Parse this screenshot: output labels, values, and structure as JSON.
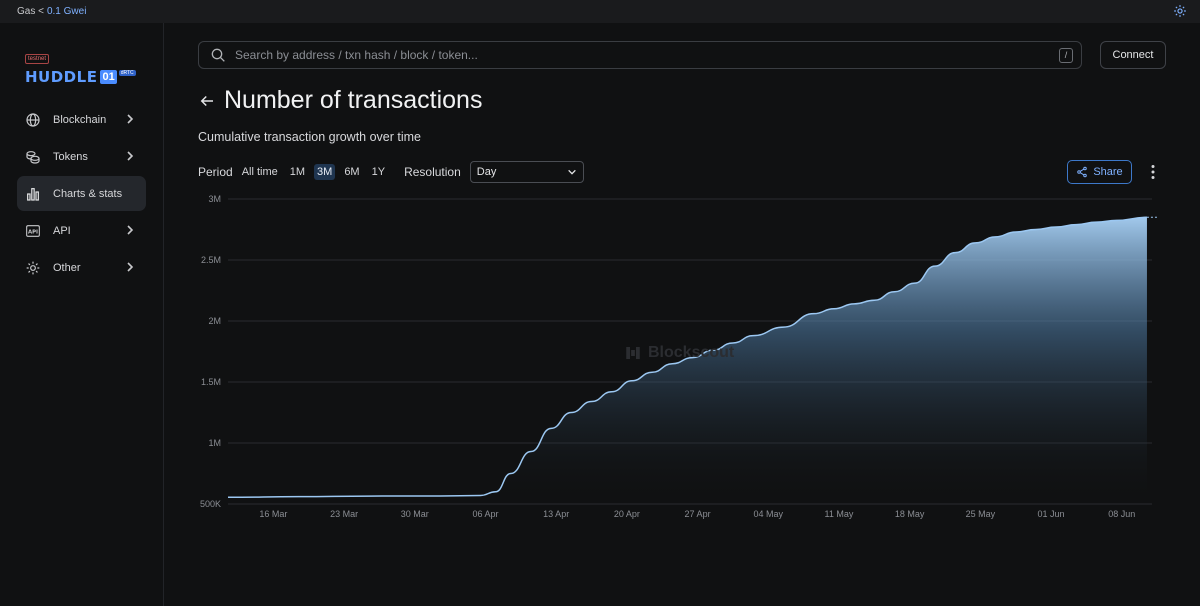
{
  "topbar": {
    "gas_label": "Gas <",
    "gas_value": "0.1 Gwei",
    "settings_icon": "gear-icon"
  },
  "logo": {
    "testnet": "testnet",
    "name": "HUDDLE",
    "number": "01",
    "tag": "dRTC"
  },
  "sidebar": {
    "items": [
      {
        "label": "Blockchain",
        "icon": "globe-icon",
        "has_chevron": true
      },
      {
        "label": "Tokens",
        "icon": "coins-icon",
        "has_chevron": true
      },
      {
        "label": "Charts & stats",
        "icon": "bar-chart-icon",
        "has_chevron": false,
        "active": true
      },
      {
        "label": "API",
        "icon": "api-icon",
        "has_chevron": true
      },
      {
        "label": "Other",
        "icon": "gear-icon",
        "has_chevron": true
      }
    ]
  },
  "search": {
    "placeholder": "Search by address / txn hash / block / token...",
    "shortcut": "/"
  },
  "header": {
    "connect_label": "Connect"
  },
  "page": {
    "title": "Number of transactions",
    "subtitle": "Cumulative transaction growth over time"
  },
  "controls": {
    "period_label": "Period",
    "periods": [
      "All time",
      "1M",
      "3M",
      "6M",
      "1Y"
    ],
    "active_period": "3M",
    "resolution_label": "Resolution",
    "resolution_value": "Day",
    "share_label": "Share"
  },
  "watermark": "Blockscout",
  "colors": {
    "accent": "#7fb1ff",
    "line": "#9cc8f2",
    "active_period_bg": "#1f3550"
  },
  "chart_data": {
    "type": "area",
    "title": "Number of transactions",
    "subtitle": "Cumulative transaction growth over time",
    "xlabel": "",
    "ylabel": "",
    "x_ticks": [
      "16 Mar",
      "23 Mar",
      "30 Mar",
      "06 Apr",
      "13 Apr",
      "20 Apr",
      "27 Apr",
      "04 May",
      "11 May",
      "18 May",
      "25 May",
      "01 Jun",
      "08 Jun"
    ],
    "y_ticks": [
      "500K",
      "1M",
      "1.5M",
      "2M",
      "2.5M",
      "3M"
    ],
    "ylim": [
      500000,
      3000000
    ],
    "x_range_days": [
      0,
      91.5
    ],
    "grid": true,
    "series": [
      {
        "name": "Number of transactions",
        "x_days": [
          0,
          7,
          14,
          21,
          25,
          26.5,
          28,
          30,
          32,
          34,
          36,
          38,
          40,
          42,
          44,
          46,
          48,
          50,
          52,
          55,
          58,
          60,
          62,
          64,
          66,
          68,
          70,
          72,
          74,
          76,
          78,
          80,
          82,
          84,
          86,
          88,
          91
        ],
        "values": [
          555000,
          560000,
          565000,
          566000,
          570000,
          600000,
          750000,
          930000,
          1120000,
          1250000,
          1340000,
          1420000,
          1510000,
          1580000,
          1650000,
          1700000,
          1760000,
          1820000,
          1880000,
          1950000,
          2060000,
          2100000,
          2140000,
          2170000,
          2240000,
          2310000,
          2450000,
          2560000,
          2640000,
          2690000,
          2730000,
          2750000,
          2770000,
          2790000,
          2810000,
          2825000,
          2850000
        ]
      }
    ]
  }
}
